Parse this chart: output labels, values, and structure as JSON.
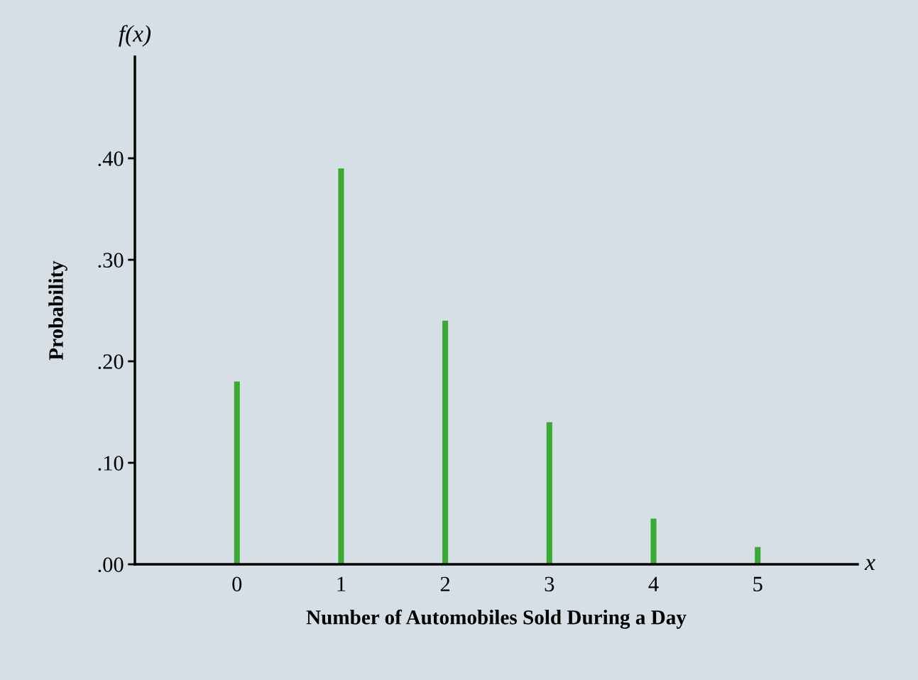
{
  "chart_data": {
    "type": "bar",
    "xlabel": "Number of Automobiles Sold During a Day",
    "ylabel": "Probability",
    "annotations": [
      "f(x)",
      "x"
    ],
    "categories": [
      "0",
      "1",
      "2",
      "3",
      "4",
      "5"
    ],
    "values": [
      0.18,
      0.39,
      0.24,
      0.14,
      0.045,
      0.017
    ],
    "color": "#3aaa35",
    "ylim": [
      0,
      0.5
    ],
    "yticks": [
      {
        "value": 0,
        "label": ".00"
      },
      {
        "value": 0.1,
        "label": ".10"
      },
      {
        "value": 0.2,
        "label": ".20"
      },
      {
        "value": 0.3,
        "label": ".30"
      },
      {
        "value": 0.4,
        "label": ".40"
      }
    ],
    "grid": false,
    "legend": false
  }
}
